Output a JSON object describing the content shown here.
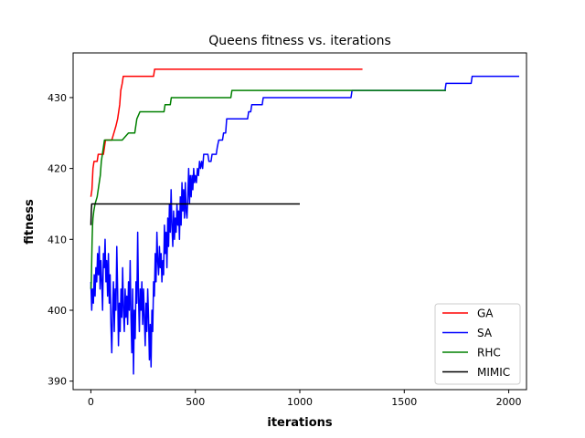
{
  "chart_data": {
    "type": "line",
    "title": "Queens fitness vs. iterations",
    "xlabel": "iterations",
    "ylabel": "fitness",
    "xlim": [
      -85,
      2085
    ],
    "ylim": [
      388.8,
      436.3
    ],
    "xticks": [
      0,
      500,
      1000,
      1500,
      2000
    ],
    "yticks": [
      390,
      400,
      410,
      420,
      430
    ],
    "grid": false,
    "legend_position": "lower-right",
    "series": [
      {
        "name": "GA",
        "color": "#ff0000",
        "points": [
          [
            0,
            416
          ],
          [
            5,
            417
          ],
          [
            10,
            420
          ],
          [
            15,
            421
          ],
          [
            30,
            421
          ],
          [
            35,
            422
          ],
          [
            60,
            422
          ],
          [
            65,
            423
          ],
          [
            70,
            424
          ],
          [
            100,
            424
          ],
          [
            110,
            425
          ],
          [
            120,
            426
          ],
          [
            128,
            427
          ],
          [
            133,
            428
          ],
          [
            138,
            429
          ],
          [
            143,
            431
          ],
          [
            150,
            432
          ],
          [
            155,
            433
          ],
          [
            300,
            433
          ],
          [
            305,
            434
          ],
          [
            1300,
            434
          ]
        ]
      },
      {
        "name": "SA",
        "color": "#0000ff",
        "points": [
          [
            0,
            404
          ],
          [
            4,
            400
          ],
          [
            8,
            403
          ],
          [
            12,
            401
          ],
          [
            16,
            405
          ],
          [
            20,
            402
          ],
          [
            24,
            406
          ],
          [
            28,
            404
          ],
          [
            32,
            408
          ],
          [
            36,
            405
          ],
          [
            40,
            409
          ],
          [
            44,
            403
          ],
          [
            48,
            407
          ],
          [
            52,
            404
          ],
          [
            56,
            400
          ],
          [
            60,
            408
          ],
          [
            64,
            406
          ],
          [
            68,
            410
          ],
          [
            72,
            404
          ],
          [
            76,
            407
          ],
          [
            80,
            402
          ],
          [
            84,
            408
          ],
          [
            88,
            401
          ],
          [
            92,
            405
          ],
          [
            96,
            398
          ],
          [
            100,
            394
          ],
          [
            104,
            400
          ],
          [
            108,
            404
          ],
          [
            112,
            397
          ],
          [
            116,
            403
          ],
          [
            120,
            400
          ],
          [
            124,
            409
          ],
          [
            128,
            403
          ],
          [
            132,
            395
          ],
          [
            136,
            401
          ],
          [
            140,
            397
          ],
          [
            144,
            403
          ],
          [
            148,
            399
          ],
          [
            152,
            406
          ],
          [
            156,
            400
          ],
          [
            160,
            397
          ],
          [
            164,
            403
          ],
          [
            168,
            399
          ],
          [
            172,
            402
          ],
          [
            176,
            398
          ],
          [
            180,
            404
          ],
          [
            184,
            400
          ],
          [
            188,
            407
          ],
          [
            192,
            399
          ],
          [
            196,
            394
          ],
          [
            200,
            403
          ],
          [
            204,
            391
          ],
          [
            208,
            400
          ],
          [
            212,
            396
          ],
          [
            216,
            404
          ],
          [
            220,
            401
          ],
          [
            224,
            411
          ],
          [
            228,
            402
          ],
          [
            232,
            397
          ],
          [
            236,
            403
          ],
          [
            240,
            400
          ],
          [
            244,
            404
          ],
          [
            248,
            398
          ],
          [
            252,
            403
          ],
          [
            256,
            399
          ],
          [
            260,
            395
          ],
          [
            264,
            401
          ],
          [
            268,
            397
          ],
          [
            272,
            403
          ],
          [
            276,
            399
          ],
          [
            280,
            393
          ],
          [
            284,
            398
          ],
          [
            288,
            392
          ],
          [
            292,
            400
          ],
          [
            296,
            397
          ],
          [
            300,
            404
          ],
          [
            304,
            402
          ],
          [
            308,
            408
          ],
          [
            312,
            404
          ],
          [
            316,
            411
          ],
          [
            320,
            407
          ],
          [
            324,
            405
          ],
          [
            328,
            409
          ],
          [
            332,
            406
          ],
          [
            336,
            408
          ],
          [
            340,
            404
          ],
          [
            344,
            407
          ],
          [
            348,
            405
          ],
          [
            352,
            412
          ],
          [
            356,
            408
          ],
          [
            360,
            411
          ],
          [
            364,
            406
          ],
          [
            368,
            413
          ],
          [
            372,
            409
          ],
          [
            376,
            415
          ],
          [
            380,
            411
          ],
          [
            384,
            417
          ],
          [
            388,
            412
          ],
          [
            392,
            409
          ],
          [
            396,
            414
          ],
          [
            400,
            410
          ],
          [
            404,
            413
          ],
          [
            408,
            411
          ],
          [
            412,
            415
          ],
          [
            416,
            412
          ],
          [
            420,
            414
          ],
          [
            424,
            410
          ],
          [
            428,
            416
          ],
          [
            432,
            412
          ],
          [
            436,
            418
          ],
          [
            440,
            414
          ],
          [
            444,
            417
          ],
          [
            448,
            413
          ],
          [
            452,
            418
          ],
          [
            456,
            414
          ],
          [
            460,
            413
          ],
          [
            464,
            416
          ],
          [
            468,
            420
          ],
          [
            472,
            415
          ],
          [
            476,
            419
          ],
          [
            480,
            416
          ],
          [
            484,
            419
          ],
          [
            488,
            417
          ],
          [
            492,
            420
          ],
          [
            496,
            418
          ],
          [
            500,
            419
          ],
          [
            505,
            418
          ],
          [
            510,
            420
          ],
          [
            515,
            419
          ],
          [
            520,
            421
          ],
          [
            525,
            420
          ],
          [
            530,
            421
          ],
          [
            535,
            420
          ],
          [
            540,
            422
          ],
          [
            560,
            422
          ],
          [
            565,
            421
          ],
          [
            575,
            421
          ],
          [
            580,
            422
          ],
          [
            600,
            422
          ],
          [
            605,
            423
          ],
          [
            612,
            424
          ],
          [
            630,
            424
          ],
          [
            635,
            425
          ],
          [
            645,
            425
          ],
          [
            650,
            427
          ],
          [
            750,
            427
          ],
          [
            755,
            428
          ],
          [
            765,
            428
          ],
          [
            770,
            429
          ],
          [
            820,
            429
          ],
          [
            825,
            430
          ],
          [
            1245,
            430
          ],
          [
            1250,
            431
          ],
          [
            1695,
            431
          ],
          [
            1700,
            432
          ],
          [
            1820,
            432
          ],
          [
            1825,
            433
          ],
          [
            2050,
            433
          ]
        ]
      },
      {
        "name": "RHC",
        "color": "#008000",
        "points": [
          [
            0,
            403
          ],
          [
            2,
            404
          ],
          [
            4,
            407
          ],
          [
            6,
            410
          ],
          [
            8,
            412
          ],
          [
            10,
            413
          ],
          [
            14,
            414
          ],
          [
            20,
            415
          ],
          [
            30,
            416
          ],
          [
            40,
            418
          ],
          [
            45,
            419
          ],
          [
            50,
            421
          ],
          [
            55,
            422
          ],
          [
            60,
            423
          ],
          [
            65,
            424
          ],
          [
            110,
            424
          ],
          [
            120,
            424
          ],
          [
            150,
            424
          ],
          [
            180,
            425
          ],
          [
            210,
            425
          ],
          [
            220,
            427
          ],
          [
            235,
            428
          ],
          [
            350,
            428
          ],
          [
            355,
            429
          ],
          [
            380,
            429
          ],
          [
            385,
            430
          ],
          [
            500,
            430
          ],
          [
            670,
            430
          ],
          [
            675,
            431
          ],
          [
            1000,
            431
          ],
          [
            1700,
            431
          ]
        ]
      },
      {
        "name": "MIMIC",
        "color": "#000000",
        "points": [
          [
            0,
            412
          ],
          [
            2,
            414
          ],
          [
            4,
            415
          ],
          [
            1000,
            415
          ]
        ]
      }
    ]
  }
}
